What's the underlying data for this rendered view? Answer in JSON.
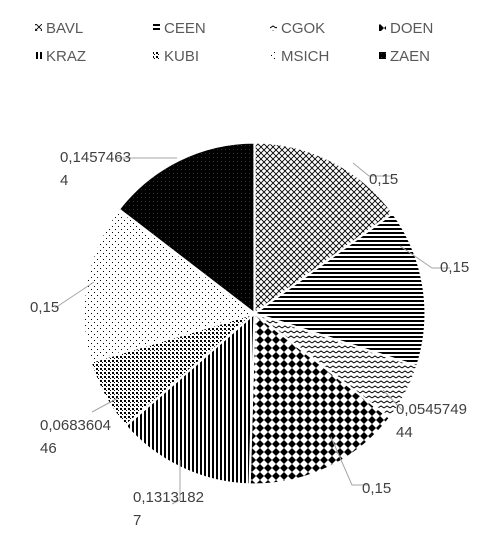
{
  "chart_data": {
    "type": "pie",
    "title": "",
    "categories": [
      "BAVL",
      "CEEN",
      "CGOK",
      "DOEN",
      "KRAZ",
      "KUBI",
      "MSICH",
      "ZAEN"
    ],
    "values": [
      0.15,
      0.15,
      0.054574944,
      0.15,
      0.13131827,
      0.068360446,
      0.15,
      0.14574634
    ],
    "data_labels": [
      [
        "0,15"
      ],
      [
        "0,15"
      ],
      [
        "0,0545749",
        "44"
      ],
      [
        "0,15"
      ],
      [
        "0,1313182",
        "7"
      ],
      [
        "0,0683604",
        "46"
      ],
      [
        "0,15"
      ],
      [
        "0,1457463",
        "4"
      ]
    ],
    "patterns": [
      "diagonal-crosshatch",
      "horizontal-lines",
      "wave",
      "diamond-checker",
      "vertical-lines",
      "dotted-grid",
      "sparse-dots",
      "solid-black"
    ],
    "colors": {
      "ink": "#000000",
      "label_text": "#404040",
      "legend_text": "#595959",
      "leader": "#a6a6a6",
      "separator": "#ffffff"
    },
    "legend_position": "top",
    "start_angle_deg": 0,
    "direction": "clockwise"
  }
}
